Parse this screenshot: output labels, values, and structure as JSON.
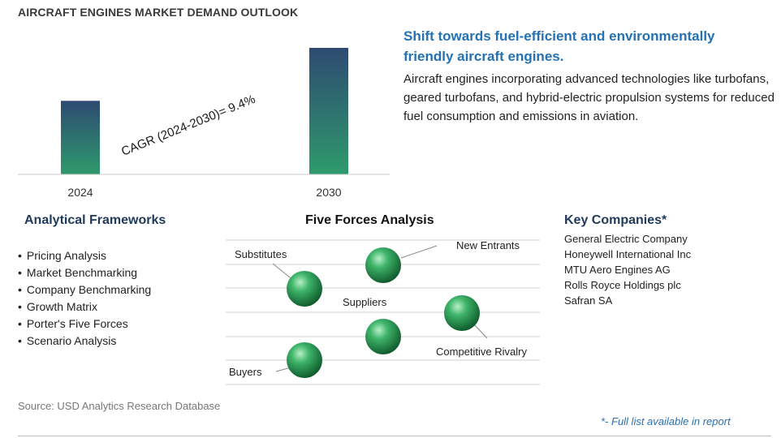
{
  "chart_data": {
    "type": "bar",
    "title": "AIRCRAFT ENGINES MARKET DEMAND OUTLOOK",
    "categories": [
      "2024",
      "2030"
    ],
    "values": [
      1.0,
      1.72
    ],
    "annotation": "CAGR (2024-2030)=    9.4%",
    "colors": {
      "bar_top": "#2e4a72",
      "bar_bottom": "#2e9a6c"
    }
  },
  "highlight": {
    "headline": "Shift towards fuel-efficient and environmentally friendly aircraft engines.",
    "description": "Aircraft engines incorporating advanced technologies like turbofans, geared turbofans, and hybrid-electric propulsion systems for reduced fuel consumption and emissions in aviation."
  },
  "analytical_frameworks": {
    "title": "Analytical Frameworks",
    "items": [
      "Pricing Analysis",
      "Market Benchmarking",
      "Company Benchmarking",
      "Growth Matrix",
      "Porter's Five Forces",
      "Scenario Analysis"
    ]
  },
  "five_forces": {
    "title": "Five Forces Analysis",
    "labels": {
      "substitutes": "Substitutes",
      "new_entrants": "New Entrants",
      "suppliers": "Suppliers",
      "competitive_rivalry": "Competitive Rivalry",
      "buyers": "Buyers"
    }
  },
  "key_companies": {
    "title": "Key Companies*",
    "items": [
      "General Electric Company",
      "Honeywell International Inc",
      "MTU Aero Engines AG",
      "Rolls Royce Holdings plc",
      "Safran SA"
    ]
  },
  "source": "Source: USD Analytics Research Database",
  "footnote": "*- Full list available in report"
}
